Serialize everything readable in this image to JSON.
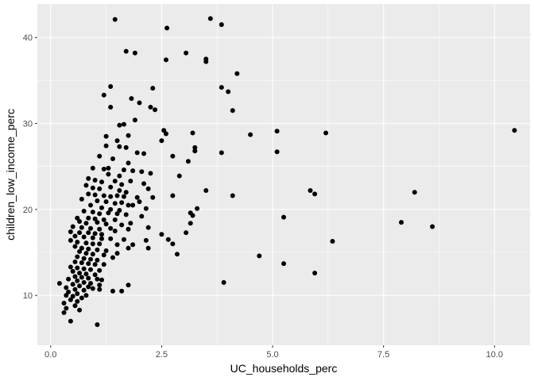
{
  "chart_data": {
    "type": "scatter",
    "title": "",
    "xlabel": "UC_households_perc",
    "ylabel": "children_low_income_perc",
    "xlim": [
      -0.3,
      10.8
    ],
    "ylim": [
      4.2,
      43.9
    ],
    "x_ticks": [
      0.0,
      2.5,
      5.0,
      7.5,
      10.0
    ],
    "x_tick_labels": [
      "0.0",
      "2.5",
      "5.0",
      "7.5",
      "10.0"
    ],
    "y_ticks": [
      10,
      20,
      30,
      40
    ],
    "y_tick_labels": [
      "10",
      "20",
      "30",
      "40"
    ],
    "x_minor_ticks": [
      1.25,
      3.75,
      6.25,
      8.75
    ],
    "y_minor_ticks": [
      15,
      25,
      35
    ],
    "grid": true,
    "legend": "none",
    "colors": {
      "panel": "#ebebeb",
      "grid": "#ffffff",
      "point": "#000000",
      "tick_text": "#4d4d4d",
      "tick_mark": "#333333"
    },
    "points": [
      [
        1.45,
        42.1
      ],
      [
        3.6,
        42.2
      ],
      [
        2.62,
        41.1
      ],
      [
        3.85,
        41.5
      ],
      [
        1.7,
        38.4
      ],
      [
        1.9,
        38.2
      ],
      [
        3.05,
        38.2
      ],
      [
        3.5,
        37.5
      ],
      [
        2.6,
        37.4
      ],
      [
        3.5,
        37.2
      ],
      [
        4.2,
        35.8
      ],
      [
        1.35,
        34.3
      ],
      [
        2.3,
        34.1
      ],
      [
        3.85,
        34.2
      ],
      [
        4.0,
        33.7
      ],
      [
        1.2,
        33.3
      ],
      [
        1.82,
        32.9
      ],
      [
        2.0,
        32.4
      ],
      [
        1.35,
        31.9
      ],
      [
        2.25,
        31.9
      ],
      [
        2.35,
        31.6
      ],
      [
        4.1,
        31.5
      ],
      [
        1.9,
        30.4
      ],
      [
        1.65,
        29.9
      ],
      [
        1.55,
        29.8
      ],
      [
        2.55,
        29.2
      ],
      [
        2.6,
        28.8
      ],
      [
        3.2,
        28.9
      ],
      [
        5.1,
        29.1
      ],
      [
        6.2,
        28.9
      ],
      [
        10.45,
        29.2
      ],
      [
        1.25,
        28.5
      ],
      [
        1.75,
        28.6
      ],
      [
        2.5,
        28.0
      ],
      [
        4.5,
        28.7
      ],
      [
        1.5,
        28.0
      ],
      [
        1.25,
        27.4
      ],
      [
        1.55,
        27.3
      ],
      [
        1.7,
        27.2
      ],
      [
        3.25,
        27.2
      ],
      [
        3.25,
        26.8
      ],
      [
        3.85,
        26.6
      ],
      [
        5.1,
        26.7
      ],
      [
        1.95,
        26.6
      ],
      [
        2.1,
        26.5
      ],
      [
        1.1,
        26.2
      ],
      [
        2.75,
        26.2
      ],
      [
        3.1,
        25.6
      ],
      [
        1.4,
        25.9
      ],
      [
        1.75,
        25.4
      ],
      [
        0.95,
        24.8
      ],
      [
        1.2,
        24.7
      ],
      [
        1.3,
        24.8
      ],
      [
        1.65,
        24.6
      ],
      [
        1.85,
        24.5
      ],
      [
        2.05,
        24.4
      ],
      [
        1.3,
        24.1
      ],
      [
        1.55,
        23.9
      ],
      [
        2.25,
        24.2
      ],
      [
        2.9,
        23.9
      ],
      [
        0.85,
        23.6
      ],
      [
        1.0,
        23.4
      ],
      [
        1.15,
        23.2
      ],
      [
        1.45,
        23.3
      ],
      [
        1.6,
        22.9
      ],
      [
        1.8,
        23.3
      ],
      [
        2.1,
        23.0
      ],
      [
        0.8,
        22.8
      ],
      [
        0.95,
        22.5
      ],
      [
        1.1,
        22.4
      ],
      [
        1.35,
        22.6
      ],
      [
        1.55,
        22.2
      ],
      [
        1.7,
        22.0
      ],
      [
        2.2,
        22.4
      ],
      [
        3.5,
        22.2
      ],
      [
        5.85,
        22.2
      ],
      [
        5.95,
        21.8
      ],
      [
        8.2,
        22.0
      ],
      [
        0.85,
        21.8
      ],
      [
        1.0,
        21.7
      ],
      [
        1.2,
        21.6
      ],
      [
        1.35,
        21.5
      ],
      [
        1.5,
        21.6
      ],
      [
        1.65,
        21.5
      ],
      [
        1.95,
        21.4
      ],
      [
        2.3,
        21.4
      ],
      [
        2.75,
        21.6
      ],
      [
        4.1,
        21.6
      ],
      [
        0.7,
        21.2
      ],
      [
        1.05,
        21.0
      ],
      [
        1.25,
        20.9
      ],
      [
        1.45,
        20.7
      ],
      [
        1.6,
        20.8
      ],
      [
        1.75,
        20.5
      ],
      [
        1.85,
        20.5
      ],
      [
        2.0,
        20.9
      ],
      [
        0.9,
        20.5
      ],
      [
        1.15,
        20.2
      ],
      [
        1.35,
        20.0
      ],
      [
        1.55,
        19.9
      ],
      [
        2.15,
        20.1
      ],
      [
        3.3,
        20.1
      ],
      [
        0.75,
        19.8
      ],
      [
        0.95,
        19.7
      ],
      [
        1.1,
        19.5
      ],
      [
        1.3,
        19.6
      ],
      [
        1.5,
        19.5
      ],
      [
        1.7,
        19.4
      ],
      [
        3.15,
        19.6
      ],
      [
        3.2,
        19.3
      ],
      [
        5.25,
        19.1
      ],
      [
        0.6,
        19.0
      ],
      [
        0.85,
        19.0
      ],
      [
        1.0,
        18.9
      ],
      [
        1.2,
        18.8
      ],
      [
        1.45,
        18.8
      ],
      [
        2.05,
        19.2
      ],
      [
        0.65,
        18.6
      ],
      [
        0.8,
        18.4
      ],
      [
        1.05,
        18.5
      ],
      [
        1.25,
        18.3
      ],
      [
        1.6,
        18.2
      ],
      [
        1.8,
        18.4
      ],
      [
        3.15,
        18.4
      ],
      [
        0.5,
        18.0
      ],
      [
        0.7,
        17.9
      ],
      [
        0.9,
        17.8
      ],
      [
        1.1,
        17.7
      ],
      [
        1.35,
        17.8
      ],
      [
        1.75,
        17.7
      ],
      [
        2.2,
        17.9
      ],
      [
        7.9,
        18.5
      ],
      [
        8.6,
        18.0
      ],
      [
        0.45,
        17.4
      ],
      [
        0.65,
        17.3
      ],
      [
        0.85,
        17.3
      ],
      [
        1.0,
        17.2
      ],
      [
        1.15,
        17.1
      ],
      [
        1.45,
        17.5
      ],
      [
        3.05,
        17.3
      ],
      [
        2.5,
        17.1
      ],
      [
        0.55,
        16.9
      ],
      [
        0.75,
        16.8
      ],
      [
        0.95,
        16.7
      ],
      [
        1.15,
        16.6
      ],
      [
        1.35,
        16.6
      ],
      [
        1.65,
        16.5
      ],
      [
        2.15,
        16.4
      ],
      [
        2.65,
        16.5
      ],
      [
        0.45,
        16.4
      ],
      [
        0.6,
        16.2
      ],
      [
        0.8,
        16.1
      ],
      [
        0.95,
        16.0
      ],
      [
        1.1,
        16.0
      ],
      [
        1.5,
        15.9
      ],
      [
        1.85,
        15.9
      ],
      [
        2.75,
        16.0
      ],
      [
        6.35,
        16.3
      ],
      [
        0.55,
        15.7
      ],
      [
        0.7,
        15.5
      ],
      [
        0.85,
        15.4
      ],
      [
        1.05,
        15.3
      ],
      [
        1.25,
        15.2
      ],
      [
        1.75,
        15.5
      ],
      [
        2.2,
        15.5
      ],
      [
        0.65,
        15.1
      ],
      [
        0.8,
        14.9
      ],
      [
        0.95,
        14.8
      ],
      [
        1.2,
        14.7
      ],
      [
        1.5,
        14.9
      ],
      [
        2.85,
        14.8
      ],
      [
        4.7,
        14.6
      ],
      [
        0.6,
        14.5
      ],
      [
        0.75,
        14.3
      ],
      [
        0.9,
        14.2
      ],
      [
        1.05,
        14.1
      ],
      [
        1.4,
        14.4
      ],
      [
        0.55,
        13.9
      ],
      [
        0.7,
        13.8
      ],
      [
        0.85,
        13.7
      ],
      [
        1.0,
        13.6
      ],
      [
        1.2,
        13.6
      ],
      [
        5.25,
        13.7
      ],
      [
        0.45,
        13.3
      ],
      [
        0.6,
        13.2
      ],
      [
        0.75,
        13.1
      ],
      [
        0.9,
        13.0
      ],
      [
        1.1,
        12.9
      ],
      [
        0.5,
        12.8
      ],
      [
        0.65,
        12.6
      ],
      [
        0.8,
        12.5
      ],
      [
        1.0,
        12.4
      ],
      [
        5.95,
        12.6
      ],
      [
        0.55,
        12.2
      ],
      [
        0.7,
        12.1
      ],
      [
        0.85,
        12.0
      ],
      [
        1.05,
        11.9
      ],
      [
        0.4,
        11.9
      ],
      [
        0.6,
        11.7
      ],
      [
        0.75,
        11.5
      ],
      [
        0.9,
        11.4
      ],
      [
        1.15,
        11.8
      ],
      [
        0.5,
        11.3
      ],
      [
        0.65,
        11.1
      ],
      [
        0.85,
        11.0
      ],
      [
        1.1,
        11.2
      ],
      [
        0.2,
        11.4
      ],
      [
        3.9,
        11.5
      ],
      [
        1.75,
        11.2
      ],
      [
        0.35,
        10.9
      ],
      [
        0.55,
        10.7
      ],
      [
        0.75,
        10.6
      ],
      [
        0.95,
        10.8
      ],
      [
        1.4,
        10.5
      ],
      [
        1.6,
        10.5
      ],
      [
        1.1,
        10.7
      ],
      [
        0.4,
        10.4
      ],
      [
        0.6,
        10.2
      ],
      [
        0.8,
        10.0
      ],
      [
        0.35,
        10.0
      ],
      [
        0.5,
        9.9
      ],
      [
        0.7,
        9.7
      ],
      [
        0.45,
        9.5
      ],
      [
        0.6,
        9.3
      ],
      [
        0.3,
        9.1
      ],
      [
        0.55,
        8.8
      ],
      [
        0.35,
        8.5
      ],
      [
        0.65,
        8.3
      ],
      [
        0.3,
        8.0
      ],
      [
        0.45,
        7.0
      ],
      [
        1.05,
        6.6
      ]
    ]
  }
}
